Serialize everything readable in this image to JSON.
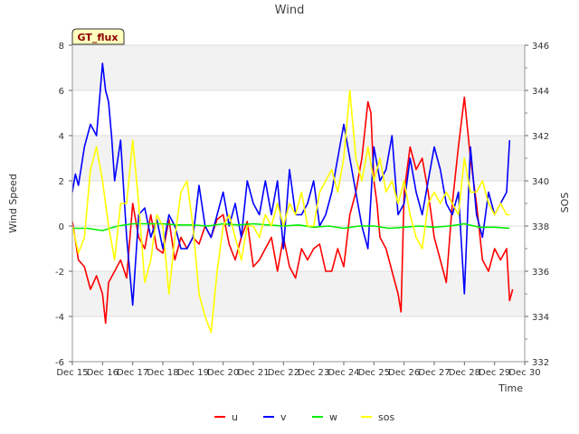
{
  "chart_data": {
    "type": "line",
    "title": "Wind",
    "badge": "GT_flux",
    "xlabel": "Time",
    "ylabel": "Wind Speed",
    "y2label": "SOS",
    "xlim": [
      15,
      30
    ],
    "ylim": [
      -6,
      8
    ],
    "y2lim": [
      332,
      346
    ],
    "xticks": [
      15,
      16,
      17,
      18,
      19,
      20,
      21,
      22,
      23,
      24,
      25,
      26,
      27,
      28,
      29,
      30
    ],
    "xtick_labels": [
      "Dec 15",
      "Dec 16",
      "Dec 17",
      "Dec 18",
      "Dec 19",
      "Dec 20",
      "Dec 21",
      "Dec 22",
      "Dec 23",
      "Dec 24",
      "Dec 25",
      "Dec 26",
      "Dec 27",
      "Dec 28",
      "Dec 29",
      "Dec 30"
    ],
    "yticks": [
      -6,
      -4,
      -2,
      0,
      2,
      4,
      6,
      8
    ],
    "ytick_labels": [
      "-6",
      "-4",
      "-2",
      "0",
      "2",
      "4",
      "6",
      "8"
    ],
    "y2ticks": [
      332,
      334,
      336,
      338,
      340,
      342,
      344,
      346
    ],
    "y2tick_labels": [
      "332",
      "334",
      "336",
      "338",
      "340",
      "342",
      "344",
      "346"
    ],
    "bands": [
      [
        -4,
        -2
      ],
      [
        2,
        4
      ],
      [
        6,
        8
      ]
    ],
    "series": [
      {
        "name": "u",
        "color": "#ff0000",
        "axis": "left",
        "x": [
          15.0,
          15.2,
          15.4,
          15.6,
          15.8,
          16.0,
          16.1,
          16.2,
          16.4,
          16.6,
          16.8,
          17.0,
          17.2,
          17.4,
          17.6,
          17.8,
          18.0,
          18.2,
          18.4,
          18.6,
          18.8,
          19.0,
          19.2,
          19.4,
          19.6,
          19.8,
          20.0,
          20.2,
          20.4,
          20.6,
          20.8,
          21.0,
          21.2,
          21.4,
          21.6,
          21.8,
          22.0,
          22.2,
          22.4,
          22.6,
          22.8,
          23.0,
          23.2,
          23.4,
          23.6,
          23.8,
          24.0,
          24.2,
          24.4,
          24.6,
          24.8,
          24.9,
          25.0,
          25.1,
          25.2,
          25.4,
          25.6,
          25.8,
          25.9,
          26.0,
          26.2,
          26.4,
          26.6,
          26.8,
          27.0,
          27.2,
          27.4,
          27.6,
          27.8,
          28.0,
          28.2,
          28.4,
          28.6,
          28.8,
          29.0,
          29.2,
          29.4,
          29.5,
          29.6
        ],
        "y": [
          0.2,
          -1.5,
          -1.8,
          -2.8,
          -2.2,
          -3.0,
          -4.3,
          -2.5,
          -2.0,
          -1.5,
          -2.3,
          1.0,
          -0.5,
          -1.0,
          0.5,
          -1.0,
          -1.2,
          0.3,
          -1.5,
          -0.5,
          -1.0,
          -0.5,
          -0.8,
          0.0,
          -0.5,
          0.3,
          0.5,
          -0.8,
          -1.5,
          -0.5,
          0.2,
          -1.8,
          -1.5,
          -1.0,
          -0.5,
          -2.0,
          -0.5,
          -1.8,
          -2.3,
          -1.0,
          -1.5,
          -1.0,
          -0.8,
          -2.0,
          -2.0,
          -1.0,
          -1.8,
          0.5,
          1.5,
          3.0,
          5.5,
          5.0,
          2.0,
          1.0,
          -0.5,
          -1.0,
          -2.0,
          -3.0,
          -3.8,
          1.5,
          3.5,
          2.5,
          3.0,
          1.5,
          -0.5,
          -1.5,
          -2.5,
          1.0,
          3.5,
          5.7,
          3.0,
          1.0,
          -1.5,
          -2.0,
          -1.0,
          -1.5,
          -1.0,
          -3.3,
          -2.8
        ]
      },
      {
        "name": "v",
        "color": "#0000ff",
        "axis": "left",
        "x": [
          15.0,
          15.1,
          15.2,
          15.4,
          15.6,
          15.8,
          16.0,
          16.1,
          16.2,
          16.3,
          16.4,
          16.6,
          16.8,
          17.0,
          17.2,
          17.4,
          17.6,
          17.8,
          18.0,
          18.2,
          18.4,
          18.6,
          18.8,
          19.0,
          19.2,
          19.4,
          19.6,
          19.8,
          20.0,
          20.2,
          20.4,
          20.6,
          20.8,
          21.0,
          21.2,
          21.4,
          21.6,
          21.8,
          22.0,
          22.2,
          22.4,
          22.6,
          22.8,
          23.0,
          23.2,
          23.4,
          23.6,
          23.8,
          24.0,
          24.2,
          24.4,
          24.6,
          24.8,
          25.0,
          25.2,
          25.4,
          25.6,
          25.8,
          26.0,
          26.2,
          26.4,
          26.6,
          26.8,
          27.0,
          27.2,
          27.4,
          27.6,
          27.8,
          28.0,
          28.2,
          28.4,
          28.6,
          28.8,
          29.0,
          29.2,
          29.4,
          29.5
        ],
        "y": [
          1.5,
          2.3,
          1.8,
          3.5,
          4.5,
          4.0,
          7.2,
          6.0,
          5.5,
          4.0,
          2.0,
          3.8,
          -0.5,
          -3.5,
          0.5,
          0.8,
          -0.5,
          0.3,
          -1.0,
          0.5,
          0.0,
          -1.0,
          -1.0,
          -0.5,
          1.8,
          0.0,
          -0.5,
          0.5,
          1.5,
          0.0,
          1.0,
          -0.5,
          2.0,
          1.0,
          0.5,
          2.0,
          0.5,
          2.0,
          -1.0,
          2.5,
          0.5,
          0.5,
          1.0,
          2.0,
          0.0,
          0.5,
          1.5,
          3.0,
          4.5,
          3.0,
          1.5,
          0.0,
          -1.0,
          3.5,
          2.0,
          2.5,
          4.0,
          0.5,
          1.0,
          3.0,
          1.5,
          0.5,
          2.0,
          3.5,
          2.5,
          1.0,
          0.5,
          1.5,
          -3.0,
          3.5,
          0.5,
          -0.5,
          1.5,
          0.5,
          1.0,
          1.5,
          3.8
        ]
      },
      {
        "name": "w",
        "color": "#00ee00",
        "axis": "left",
        "x": [
          15.0,
          15.5,
          16.0,
          16.5,
          17.0,
          17.5,
          18.0,
          18.5,
          19.0,
          19.5,
          20.0,
          20.5,
          21.0,
          21.5,
          22.0,
          22.5,
          23.0,
          23.5,
          24.0,
          24.5,
          25.0,
          25.5,
          26.0,
          26.5,
          27.0,
          27.5,
          28.0,
          28.5,
          29.0,
          29.5
        ],
        "y": [
          -0.1,
          -0.1,
          -0.2,
          0.0,
          0.1,
          0.1,
          0.1,
          0.05,
          0.05,
          0.0,
          0.1,
          0.05,
          0.1,
          0.05,
          0.0,
          0.05,
          -0.05,
          0.0,
          -0.1,
          0.0,
          0.0,
          -0.1,
          -0.05,
          0.0,
          -0.05,
          0.0,
          0.1,
          -0.05,
          -0.05,
          -0.1
        ]
      },
      {
        "name": "sos",
        "color": "#ffff00",
        "axis": "right",
        "x": [
          15.0,
          15.2,
          15.4,
          15.6,
          15.8,
          16.0,
          16.2,
          16.4,
          16.6,
          16.8,
          17.0,
          17.2,
          17.4,
          17.6,
          17.8,
          18.0,
          18.2,
          18.4,
          18.6,
          18.8,
          19.0,
          19.2,
          19.4,
          19.6,
          19.8,
          20.0,
          20.2,
          20.4,
          20.6,
          20.8,
          21.0,
          21.2,
          21.4,
          21.6,
          21.8,
          22.0,
          22.2,
          22.4,
          22.6,
          22.8,
          23.0,
          23.2,
          23.4,
          23.6,
          23.8,
          24.0,
          24.2,
          24.4,
          24.6,
          24.8,
          25.0,
          25.2,
          25.4,
          25.6,
          25.8,
          26.0,
          26.2,
          26.4,
          26.6,
          26.8,
          27.0,
          27.2,
          27.4,
          27.6,
          27.8,
          28.0,
          28.2,
          28.4,
          28.6,
          28.8,
          29.0,
          29.2,
          29.4,
          29.5
        ],
        "y": [
          338.0,
          336.8,
          337.5,
          340.5,
          341.5,
          340.0,
          338.0,
          336.5,
          339.0,
          339.0,
          341.8,
          339.0,
          335.5,
          336.5,
          338.5,
          338.0,
          335.0,
          337.5,
          339.5,
          340.0,
          338.0,
          335.0,
          334.0,
          333.3,
          336.0,
          338.0,
          338.5,
          337.5,
          336.5,
          338.0,
          338.0,
          337.5,
          338.5,
          338.0,
          339.0,
          338.0,
          339.0,
          338.5,
          339.5,
          338.0,
          338.0,
          339.5,
          340.0,
          340.5,
          339.5,
          341.0,
          344.0,
          341.0,
          340.0,
          341.5,
          340.0,
          341.0,
          339.5,
          340.0,
          339.0,
          340.0,
          338.5,
          337.5,
          337.0,
          339.0,
          339.5,
          339.0,
          339.5,
          339.0,
          338.5,
          341.0,
          339.5,
          339.5,
          340.0,
          339.0,
          338.5,
          339.0,
          338.5,
          338.5
        ]
      }
    ],
    "legend": [
      {
        "label": "u",
        "color": "#ff0000"
      },
      {
        "label": "v",
        "color": "#0000ff"
      },
      {
        "label": "w",
        "color": "#00ee00"
      },
      {
        "label": "sos",
        "color": "#ffff00"
      }
    ],
    "legend_position": "bottom-center",
    "grid": true
  }
}
